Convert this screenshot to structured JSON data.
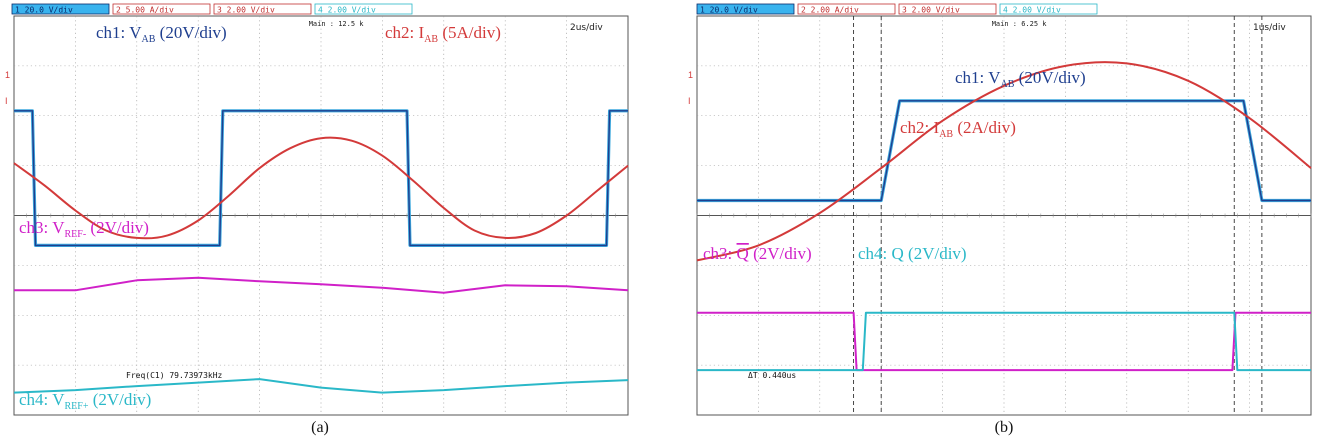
{
  "colors": {
    "ch1": "#1f3f8f",
    "ch1_alt": "#3ba7dd",
    "ch2": "#d33a3a",
    "ch3": "#d020c8",
    "ch4": "#2ab8c8",
    "grid": "#9a9a9a",
    "frame": "#555555"
  },
  "chart_data": [
    {
      "type": "line",
      "caption": "(a)",
      "header": {
        "ch1": "20.0 V/div",
        "ch2": "5.00 A/div",
        "ch3": "2.00 V/div",
        "ch4": "2.00 V/div"
      },
      "main": "Main : 12.5 k",
      "timebase": "2us/div",
      "readout": "Freq(C1)  79.73973kHz",
      "labels": {
        "ch1": {
          "pre": "ch1: V",
          "sub": "AB",
          "post": " (20V/div)"
        },
        "ch2": {
          "pre": "ch2: I",
          "sub": "AB",
          "post": " (5A/div)"
        },
        "ch3": {
          "pre": "ch3: V",
          "sub": "REF-",
          "post": " (2V/div)"
        },
        "ch4": {
          "pre": "ch4: V",
          "sub": "REF+",
          "post": " (2V/div)"
        }
      },
      "x_range": [
        0,
        20
      ],
      "x_unit": "us",
      "divisions": {
        "x": 10,
        "y": 8
      },
      "series": [
        {
          "channel": "ch1",
          "x": [
            0,
            0.6,
            0.7,
            6.7,
            6.8,
            12.8,
            12.9,
            19.3,
            19.4,
            20
          ],
          "y": [
            2.1,
            2.1,
            -0.6,
            -0.6,
            2.1,
            2.1,
            -0.6,
            -0.6,
            2.1,
            2.1
          ]
        },
        {
          "channel": "ch2",
          "x": [
            0,
            1,
            2,
            3,
            4,
            5,
            6,
            7,
            8,
            9,
            10,
            11,
            12,
            13,
            14,
            15,
            16,
            17,
            18,
            19,
            20
          ],
          "y": [
            1.05,
            0.6,
            0.1,
            -0.3,
            -0.45,
            -0.4,
            -0.1,
            0.4,
            0.95,
            1.35,
            1.55,
            1.5,
            1.2,
            0.7,
            0.15,
            -0.3,
            -0.45,
            -0.35,
            0.0,
            0.5,
            1.0
          ]
        },
        {
          "channel": "ch3",
          "x": [
            0,
            2,
            4,
            6,
            8,
            10,
            12,
            14,
            16,
            18,
            20
          ],
          "y": [
            -1.5,
            -1.5,
            -1.3,
            -1.25,
            -1.32,
            -1.38,
            -1.45,
            -1.55,
            -1.4,
            -1.42,
            -1.5
          ]
        },
        {
          "channel": "ch4",
          "x": [
            0,
            2,
            4,
            6,
            8,
            10,
            12,
            14,
            16,
            18,
            20
          ],
          "y": [
            -3.55,
            -3.5,
            -3.42,
            -3.35,
            -3.28,
            -3.45,
            -3.55,
            -3.5,
            -3.42,
            -3.35,
            -3.3
          ]
        }
      ]
    },
    {
      "type": "line",
      "caption": "(b)",
      "header": {
        "ch1": "20.0 V/div",
        "ch2": "2.00 A/div",
        "ch3": "2.00 V/div",
        "ch4": "2.00 V/div"
      },
      "main": "Main : 6.25 k",
      "timebase": "1us/div",
      "readout": "ΔT  0.440us",
      "labels": {
        "ch1": {
          "pre": "ch1: V",
          "sub": "AB",
          "post": " (20V/div)"
        },
        "ch2": {
          "pre": "ch2: I",
          "sub": "AB",
          "post": " (2A/div)"
        },
        "ch3": {
          "pre": "ch3: ",
          "bar": "Q",
          "post": " (2V/div)"
        },
        "ch4": {
          "pre": "ch4: Q",
          "post": " (2V/div)"
        }
      },
      "x_range": [
        0,
        10
      ],
      "x_unit": "us",
      "divisions": {
        "x": 10,
        "y": 8
      },
      "cursors": [
        2.55,
        3.0,
        8.75,
        9.2
      ],
      "series": [
        {
          "channel": "ch1",
          "x": [
            0,
            3.0,
            3.3,
            8.9,
            9.2,
            10
          ],
          "y": [
            0.3,
            0.3,
            2.3,
            2.3,
            0.3,
            0.3
          ]
        },
        {
          "channel": "ch2",
          "x": [
            0,
            1.0,
            2.0,
            3.0,
            4.0,
            5.0,
            6.0,
            7.0,
            8.0,
            9.0,
            10.0
          ],
          "y": [
            -0.9,
            -0.6,
            0.05,
            0.95,
            1.9,
            2.6,
            3.0,
            3.05,
            2.7,
            1.95,
            0.95
          ]
        },
        {
          "channel": "ch3",
          "x": [
            0,
            2.55,
            2.6,
            8.72,
            8.77,
            10
          ],
          "y": [
            -1.95,
            -1.95,
            -3.1,
            -3.1,
            -1.95,
            -1.95
          ]
        },
        {
          "channel": "ch4",
          "x": [
            0,
            2.7,
            2.75,
            8.75,
            8.8,
            10
          ],
          "y": [
            -3.1,
            -3.1,
            -1.95,
            -1.95,
            -3.1,
            -3.1
          ]
        }
      ]
    }
  ]
}
